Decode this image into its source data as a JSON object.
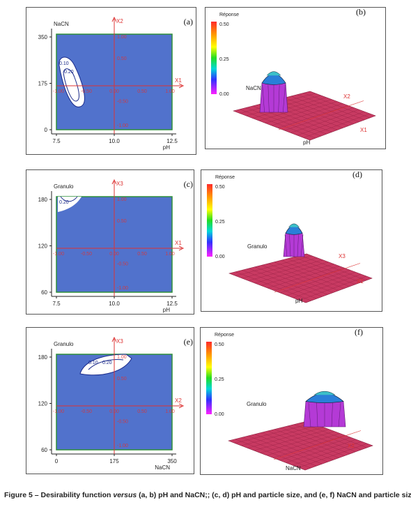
{
  "chart_data": [
    {
      "type": "contour",
      "panel_label": "(a)",
      "ylabel": "NaCN",
      "xlabel": "pH",
      "x_ticks": [
        "7.5",
        "10.0",
        "12.5"
      ],
      "y_ticks": [
        "350",
        "175",
        "0"
      ],
      "xlim": [
        7.5,
        12.5
      ],
      "ylim": [
        0,
        350
      ],
      "coded_x_axis": "X1",
      "coded_x_ticks": [
        "-1.00",
        "-0.50",
        "0.00",
        "0.50",
        "1.00"
      ],
      "coded_y_axis": "X2",
      "coded_y_ticks": [
        "1.00",
        "0.50",
        "-0.50",
        "-1.00"
      ],
      "contour_labels": [
        "0.10",
        "0.20"
      ],
      "colors": {
        "plot_fill": "#5172cc",
        "frame": "#2f8f3a",
        "axis_lines": "#dd3333",
        "contour": "#ffffff"
      }
    },
    {
      "type": "surface3d",
      "panel_label": "(b)",
      "legend_title": "Réponse",
      "legend_ticks": [
        "0.50",
        "0.25",
        "0.00"
      ],
      "axis_labels": [
        "NaCN",
        "pH",
        "X1",
        "X2"
      ],
      "zlim": [
        0,
        0.5
      ],
      "colors": {
        "surface": "#c83a62"
      }
    },
    {
      "type": "contour",
      "panel_label": "(c)",
      "ylabel": "Granulo",
      "xlabel": "pH",
      "x_ticks": [
        "7.5",
        "10.0",
        "12.5"
      ],
      "y_ticks": [
        "180",
        "120",
        "60"
      ],
      "xlim": [
        7.5,
        12.5
      ],
      "ylim": [
        60,
        180
      ],
      "coded_x_axis": "X1",
      "coded_x_ticks": [
        "-1.00",
        "-0.50",
        "0.00",
        "0.50",
        "1.00"
      ],
      "coded_y_axis": "X3",
      "coded_y_ticks": [
        "1.00",
        "0.50",
        "-0.50",
        "-1.00"
      ],
      "contour_labels": [
        "0.20"
      ],
      "colors": {
        "plot_fill": "#5172cc",
        "frame": "#2f8f3a",
        "axis_lines": "#dd3333",
        "contour": "#ffffff"
      }
    },
    {
      "type": "surface3d",
      "panel_label": "(d)",
      "legend_title": "Réponse",
      "legend_ticks": [
        "0.50",
        "0.25",
        "0.00"
      ],
      "axis_labels": [
        "Granulo",
        "pH",
        "X1",
        "X3"
      ],
      "zlim": [
        0,
        0.5
      ],
      "colors": {
        "surface": "#c83a62"
      }
    },
    {
      "type": "contour",
      "panel_label": "(e)",
      "ylabel": "Granulo",
      "xlabel": "NaCN",
      "x_ticks": [
        "0",
        "175",
        "350"
      ],
      "y_ticks": [
        "180",
        "120",
        "60"
      ],
      "xlim": [
        0,
        350
      ],
      "ylim": [
        60,
        180
      ],
      "coded_x_axis": "X2",
      "coded_x_ticks": [
        "-1.00",
        "-0.50",
        "0.00",
        "0.50",
        "1.00"
      ],
      "coded_y_axis": "X3",
      "coded_y_ticks": [
        "1.00",
        "0.50",
        "-0.50",
        "-1.00"
      ],
      "contour_labels": [
        "0.10",
        "0.20"
      ],
      "colors": {
        "plot_fill": "#5172cc",
        "frame": "#2f8f3a",
        "axis_lines": "#dd3333",
        "contour": "#ffffff"
      }
    },
    {
      "type": "surface3d",
      "panel_label": "(f)",
      "legend_title": "Réponse",
      "legend_ticks": [
        "0.50",
        "0.25",
        "0.00"
      ],
      "axis_labels": [
        "Granulo",
        "NaCN",
        "X2"
      ],
      "zlim": [
        0,
        0.5
      ],
      "colors": {
        "surface": "#c83a62"
      }
    }
  ],
  "caption": {
    "prefix": "Figure 5 – Desirability function ",
    "italic": "versus",
    "suffix": " (a, b) pH and NaCN;; (c, d) pH and particle size, and (e, f) NaCN and particle size"
  }
}
